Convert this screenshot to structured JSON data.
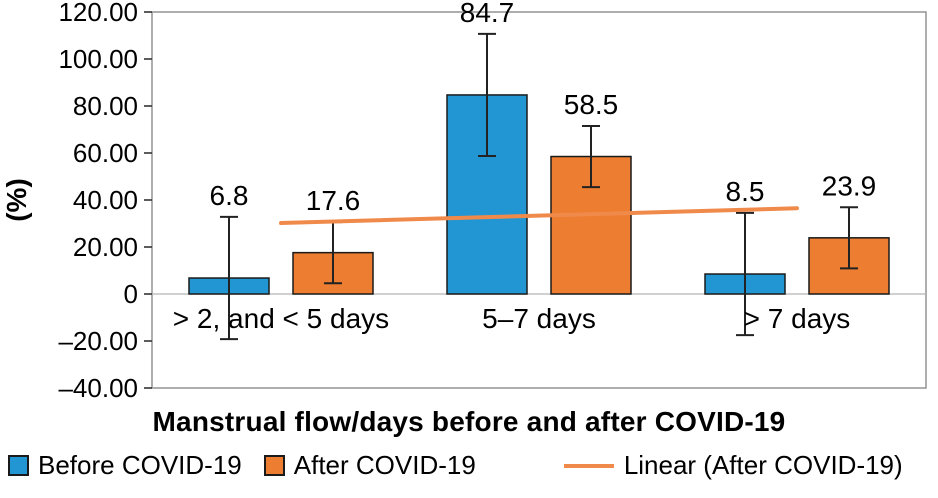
{
  "chart_data": {
    "type": "bar",
    "title": "",
    "xlabel": "Manstrual flow/days before and after COVID-19",
    "ylabel": "(%)",
    "ylim": [
      -40,
      120
    ],
    "ytick_step": 20,
    "ytick_labels": [
      "120.00",
      "100.00",
      "80.00",
      "60.00",
      "40.00",
      "20.00",
      "0",
      "–20.00",
      "–40.00"
    ],
    "categories": [
      "> 2, and < 5 days",
      "5–7 days",
      "> 7 days"
    ],
    "series": [
      {
        "name": "Before COVID-19",
        "color": "#2196d3",
        "values": [
          6.8,
          84.7,
          8.5
        ],
        "error": [
          26,
          26,
          26
        ]
      },
      {
        "name": "After COVID-19",
        "color": "#ed7d31",
        "values": [
          17.6,
          58.5,
          23.9
        ],
        "error": [
          13,
          13,
          13
        ]
      }
    ],
    "data_labels": [
      "6.8",
      "17.6",
      "84.7",
      "58.5",
      "8.5",
      "23.9"
    ],
    "trendline": {
      "name": "Linear (After COVID-19)",
      "color": "#f08a4b",
      "y_start": 30.2,
      "y_end": 36.5
    },
    "grid": false,
    "legend_position": "bottom"
  },
  "legend": {
    "items": [
      {
        "label": "Before COVID-19",
        "type": "square",
        "color": "#2196d3"
      },
      {
        "label": "After COVID-19",
        "type": "square",
        "color": "#ed7d31"
      },
      {
        "label": "Linear (After COVID-19)",
        "type": "line",
        "color": "#f08a4b"
      }
    ]
  }
}
